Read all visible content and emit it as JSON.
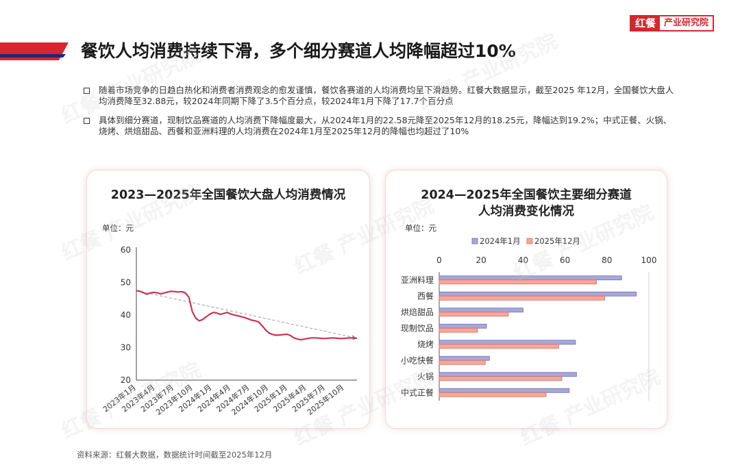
{
  "brand": {
    "mark": "红餐",
    "text": "产业研究院"
  },
  "header": {
    "title": "餐饮人均消费持续下滑，多个细分赛道人均降幅超过10%"
  },
  "bullets": [
    "随着市场竞争的日趋白热化和消费者消费观念的愈发谨慎，餐饮各赛道的人均消费均呈下滑趋势。红餐大数据显示，截至2025 年12月，全国餐饮大盘人均消费降至32.88元，较2024年同期下降了3.5个百分点，较2024年1月下降了17.7个百分点",
    "具体到细分赛道，现制饮品赛道的人均消费下降幅度最大，从2024年1月的22.58元降至2025年12月的18.25元，降幅达到19.2%；中式正餐、火锅、烧烤、烘焙甜品、西餐和亚洲料理的人均消费在2024年1月至2025年12月的降幅也均超过了10%"
  ],
  "source": "资料来源：红餐大数据，数据统计时间截至2025年12月",
  "watermark_text": "红餐 产业研究院",
  "colors": {
    "accent_red": "#d7262d",
    "line_red": "#c8334f",
    "bar_blue": "#a7a7da",
    "bar_blue_edge": "#6f6fb3",
    "bar_salmon": "#f4a89a",
    "bar_salmon_edge": "#d9705f"
  },
  "chart_data": [
    {
      "type": "line",
      "title": "2023—2025年全国餐饮大盘人均消费情况",
      "unit": "单位：元",
      "ylim": [
        20,
        60
      ],
      "yticks": [
        "60",
        "50",
        "40",
        "30",
        "20"
      ],
      "xticks": [
        "2023年1月",
        "2023年4月",
        "2023年7月",
        "2023年10月",
        "2024年1月",
        "2024年4月",
        "2024年7月",
        "2024年10月",
        "2025年1月",
        "2025年4月",
        "2025年7月",
        "2025年10月"
      ],
      "trend_line": true,
      "series": [
        {
          "values": [
            47.5,
            47.3,
            46.9,
            46.4,
            46.8,
            47.0,
            46.8,
            46.5,
            46.8,
            47.1,
            47.3,
            47.2,
            47.1,
            47.2,
            46.8,
            45.5,
            41.0,
            39.0,
            38.2,
            38.7,
            39.5,
            40.3,
            40.8,
            40.6,
            40.2,
            40.5,
            40.8,
            40.3,
            40.0,
            39.8,
            39.5,
            39.2,
            38.8,
            38.4,
            38.2,
            37.8,
            36.6,
            35.3,
            34.4,
            34.0,
            33.8,
            33.9,
            34.0,
            34.1,
            33.7,
            33.0,
            32.6,
            32.4,
            32.6,
            32.8,
            33.0,
            33.0,
            32.9,
            32.8,
            32.8,
            32.9,
            33.0,
            32.9,
            32.8,
            32.8,
            32.9,
            33.0,
            32.95,
            32.88
          ]
        }
      ]
    },
    {
      "type": "bar",
      "orientation": "horizontal",
      "title": "2024—2025年全国餐饮主要细分赛道人均消费变化情况",
      "title_lines": [
        "2024—2025年全国餐饮主要细分赛道",
        "人均消费变化情况"
      ],
      "unit": "单位：元",
      "xlim": [
        0,
        100
      ],
      "xticks": [
        0,
        20,
        40,
        60,
        80,
        100
      ],
      "legend_position": "top",
      "categories": [
        "亚洲料理",
        "西餐",
        "烘焙甜品",
        "现制饮品",
        "烧烤",
        "小吃快餐",
        "火锅",
        "中式正餐"
      ],
      "series": [
        {
          "name": "2024年1月",
          "values": [
            87,
            94,
            40,
            22.58,
            65,
            24,
            65.5,
            62
          ]
        },
        {
          "name": "2025年12月",
          "values": [
            75,
            79,
            33,
            18.25,
            57,
            22,
            58.5,
            51
          ]
        }
      ]
    }
  ]
}
